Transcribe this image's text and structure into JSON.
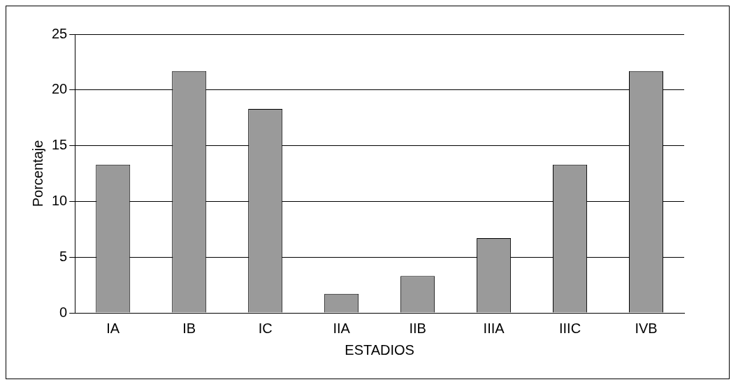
{
  "chart_data": {
    "type": "bar",
    "xlabel": "ESTADIOS",
    "ylabel": "Porcentaje",
    "categories": [
      "IA",
      "IB",
      "IC",
      "IIA",
      "IIB",
      "IIIA",
      "IIIC",
      "IVB"
    ],
    "values": [
      13.3,
      21.7,
      18.3,
      1.7,
      3.3,
      6.7,
      13.3,
      21.7
    ],
    "color": "#9a9a9a",
    "ylim": [
      0,
      25
    ],
    "yticks": [
      0,
      5,
      10,
      15,
      20,
      25
    ],
    "grid": "y",
    "legend": false
  }
}
